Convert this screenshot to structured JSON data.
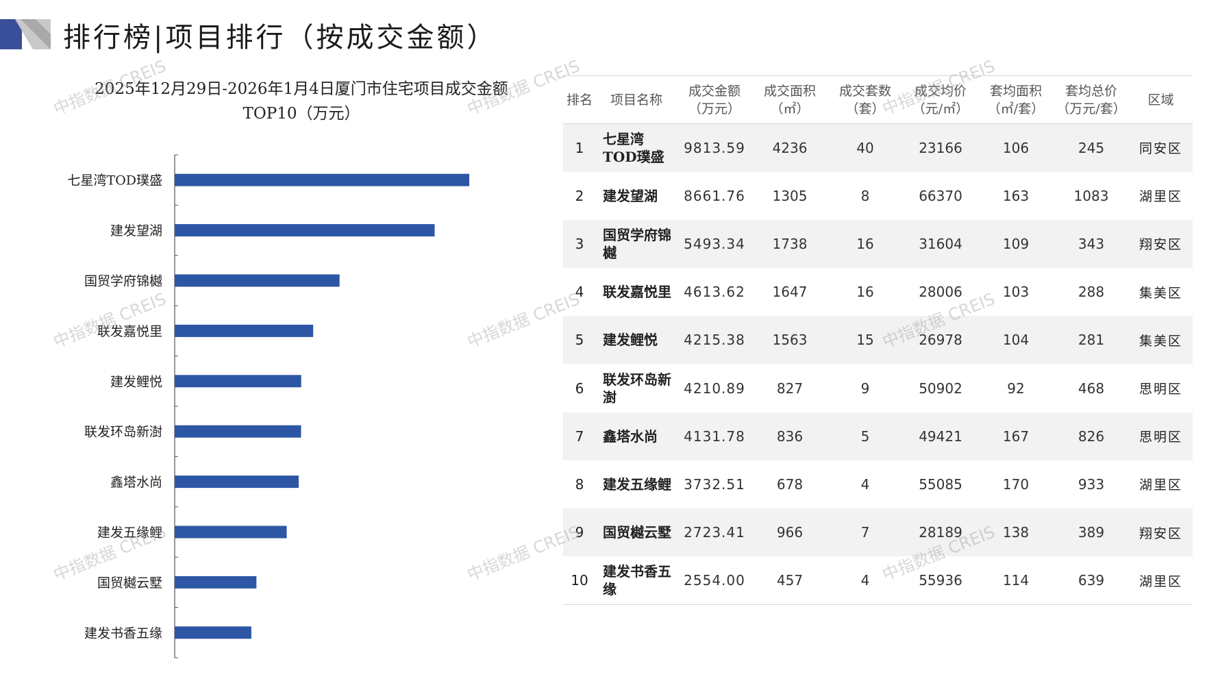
{
  "header": {
    "title": "排行榜|项目排行（按成交金额）"
  },
  "chart_title": {
    "line1": "2025年12月29日-2026年1月4日厦门市住宅项目成交金额",
    "line2": "TOP10（万元）"
  },
  "watermark": "中指数据 CREIS",
  "colors": {
    "bar": "#2d56a5",
    "axis": "#555555",
    "row_shade": "#f2f2f2",
    "deco_dark": "#3a4f9a",
    "deco_light": "#c9c9c9"
  },
  "chart_data": {
    "type": "bar",
    "orientation": "horizontal",
    "title": "2025年12月29日-2026年1月4日厦门市住宅项目成交金额TOP10（万元）",
    "categories": [
      "七星湾TOD璞盛",
      "建发望湖",
      "国贸学府锦樾",
      "联发嘉悦里",
      "建发鲤悦",
      "联发环岛新澍",
      "鑫塔水尚",
      "建发五缘鲤",
      "国贸樾云墅",
      "建发书香五缘"
    ],
    "values": [
      9813.59,
      8661.76,
      5493.34,
      4613.62,
      4215.38,
      4210.89,
      4131.78,
      3732.51,
      2723.41,
      2554.0
    ],
    "xlim": [
      0,
      12000
    ],
    "grid": false,
    "data_labels": false
  },
  "table": {
    "headers": [
      {
        "l1": "排名",
        "l2": ""
      },
      {
        "l1": "项目名称",
        "l2": ""
      },
      {
        "l1": "成交金额",
        "l2": "（万元）"
      },
      {
        "l1": "成交面积",
        "l2": "（㎡）"
      },
      {
        "l1": "成交套数",
        "l2": "（套）"
      },
      {
        "l1": "成交均价",
        "l2": "（元/㎡）"
      },
      {
        "l1": "套均面积",
        "l2": "（㎡/套）"
      },
      {
        "l1": "套均总价",
        "l2": "（万元/套）"
      },
      {
        "l1": "区域",
        "l2": ""
      }
    ],
    "rows": [
      {
        "rank": "1",
        "name": "七星湾TOD璞盛",
        "amount": "9813.59",
        "area": "4236",
        "units": "40",
        "avg_price": "23166",
        "avg_area": "106",
        "avg_total": "245",
        "district": "同安区"
      },
      {
        "rank": "2",
        "name": "建发望湖",
        "amount": "8661.76",
        "area": "1305",
        "units": "8",
        "avg_price": "66370",
        "avg_area": "163",
        "avg_total": "1083",
        "district": "湖里区"
      },
      {
        "rank": "3",
        "name": "国贸学府锦樾",
        "amount": "5493.34",
        "area": "1738",
        "units": "16",
        "avg_price": "31604",
        "avg_area": "109",
        "avg_total": "343",
        "district": "翔安区"
      },
      {
        "rank": "4",
        "name": "联发嘉悦里",
        "amount": "4613.62",
        "area": "1647",
        "units": "16",
        "avg_price": "28006",
        "avg_area": "103",
        "avg_total": "288",
        "district": "集美区"
      },
      {
        "rank": "5",
        "name": "建发鲤悦",
        "amount": "4215.38",
        "area": "1563",
        "units": "15",
        "avg_price": "26978",
        "avg_area": "104",
        "avg_total": "281",
        "district": "集美区"
      },
      {
        "rank": "6",
        "name": "联发环岛新澍",
        "amount": "4210.89",
        "area": "827",
        "units": "9",
        "avg_price": "50902",
        "avg_area": "92",
        "avg_total": "468",
        "district": "思明区"
      },
      {
        "rank": "7",
        "name": "鑫塔水尚",
        "amount": "4131.78",
        "area": "836",
        "units": "5",
        "avg_price": "49421",
        "avg_area": "167",
        "avg_total": "826",
        "district": "思明区"
      },
      {
        "rank": "8",
        "name": "建发五缘鲤",
        "amount": "3732.51",
        "area": "678",
        "units": "4",
        "avg_price": "55085",
        "avg_area": "170",
        "avg_total": "933",
        "district": "湖里区"
      },
      {
        "rank": "9",
        "name": "国贸樾云墅",
        "amount": "2723.41",
        "area": "966",
        "units": "7",
        "avg_price": "28189",
        "avg_area": "138",
        "avg_total": "389",
        "district": "翔安区"
      },
      {
        "rank": "10",
        "name": "建发书香五缘",
        "amount": "2554.00",
        "area": "457",
        "units": "4",
        "avg_price": "55936",
        "avg_area": "114",
        "avg_total": "639",
        "district": "湖里区"
      }
    ]
  }
}
